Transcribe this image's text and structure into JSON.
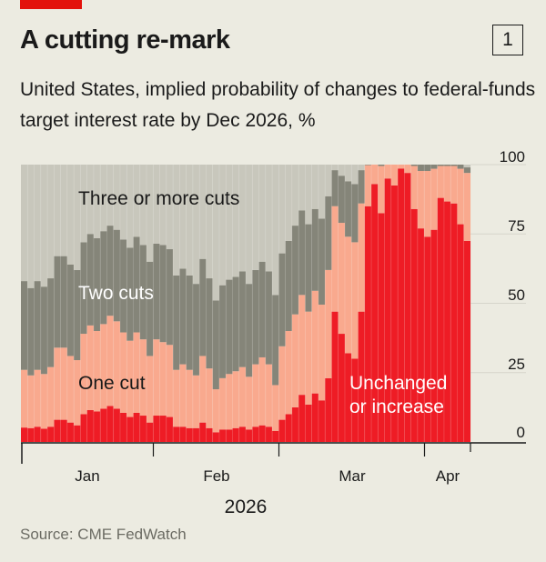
{
  "header": {
    "title": "A cutting re-mark",
    "chart_number": "1",
    "subtitle": "United States, implied probability of changes to federal-funds target interest rate by Dec 2026, %"
  },
  "source": "Source: CME FedWatch",
  "colors": {
    "background": "#ecebe1",
    "accent": "#e3120b",
    "unchanged": "#ee1c25",
    "one_cut": "#f9a98e",
    "two_cuts": "#858579",
    "three_cuts": "#c8c7bc"
  },
  "chart_data": {
    "type": "bar",
    "stacked": true,
    "title": "A cutting re-mark",
    "subtitle": "United States, implied probability of changes to federal-funds target interest rate by Dec 2026, %",
    "xlabel": "2026",
    "ylabel": "",
    "ylim": [
      0,
      100
    ],
    "yticks": [
      "0",
      "25",
      "50",
      "75",
      "100"
    ],
    "y_axis_side": "right",
    "grid": true,
    "x_month_labels": [
      "Jan",
      "Feb",
      "Mar",
      "Apr"
    ],
    "x_year_label": "2026",
    "series": [
      {
        "name": "Unchanged or increase",
        "color": "#ee1c25",
        "values": [
          5.2,
          5,
          5.5,
          4.8,
          5.5,
          8,
          8,
          7,
          6,
          10,
          11.5,
          11,
          12,
          13,
          12,
          10.5,
          9,
          10.5,
          9.5,
          7,
          9.5,
          9.5,
          9,
          5.5,
          5.5,
          5,
          5,
          7,
          5,
          3.5,
          4.5,
          4.5,
          5,
          5.5,
          4.5,
          5.5,
          6,
          5.5,
          4,
          8,
          10,
          12.5,
          17,
          13.5,
          17.5,
          15,
          23,
          47,
          39,
          32,
          30,
          47,
          85,
          93,
          82.5,
          95,
          92.5,
          98.6,
          97,
          84,
          77,
          74,
          76.5,
          88,
          86.7,
          86,
          78.5,
          72.5
        ]
      },
      {
        "name": "One cut",
        "color": "#f9a98e",
        "values": [
          20.8,
          19,
          20.5,
          19.7,
          21.5,
          26,
          26,
          24,
          23.5,
          29,
          30.5,
          29,
          30.5,
          32.5,
          31.5,
          29,
          27.5,
          29,
          27.5,
          24,
          27.5,
          26.5,
          26,
          20.5,
          22.5,
          21,
          19,
          24,
          21.5,
          15.5,
          18.5,
          20,
          20.5,
          21.5,
          19,
          22.5,
          24.5,
          22.5,
          16.5,
          26.5,
          30,
          33.5,
          36,
          33.5,
          37,
          34.5,
          39,
          38,
          40,
          42,
          42,
          39,
          14.8,
          7,
          17,
          5,
          7.5,
          1.4,
          3,
          15.5,
          20.7,
          23.7,
          22,
          11.5,
          12.8,
          13.5,
          20,
          24.5
        ]
      },
      {
        "name": "Two cuts",
        "color": "#858579",
        "values": [
          32,
          31.5,
          32,
          31.5,
          32,
          33,
          33,
          33,
          32.5,
          33,
          33,
          33.5,
          33.5,
          32.5,
          33,
          33.5,
          33.5,
          34.5,
          34,
          34,
          34.5,
          35,
          34.5,
          34,
          34.5,
          34,
          33,
          35,
          32.5,
          32,
          33.5,
          34,
          34,
          34.5,
          33.5,
          34,
          34.5,
          33.5,
          32.5,
          33.5,
          32.5,
          32,
          30.5,
          31.5,
          29.5,
          31,
          26.6,
          13,
          17,
          20,
          21,
          12,
          0.2,
          0,
          0.5,
          0,
          0,
          0,
          0,
          0.5,
          2.3,
          2.3,
          1.5,
          0.5,
          0.5,
          0.5,
          1.5,
          2
        ]
      },
      {
        "name": "Three or more cuts",
        "color": "#c8c7bc",
        "values": [
          42,
          44.5,
          42,
          44,
          41,
          33,
          33,
          36,
          38,
          28,
          25,
          26.5,
          24,
          22,
          23.5,
          27,
          30,
          26,
          29,
          35,
          28.5,
          29,
          30.5,
          40,
          37.5,
          40,
          43,
          34,
          41,
          49,
          43.5,
          41.5,
          40.5,
          38.5,
          43,
          38,
          35,
          38.5,
          47,
          32,
          27.5,
          22,
          16.5,
          21.5,
          16,
          19.5,
          11.4,
          2,
          4,
          6,
          7,
          2,
          0,
          0,
          0,
          0,
          0,
          0,
          0,
          0,
          0,
          0,
          0,
          0,
          0,
          0,
          0,
          1
        ]
      }
    ],
    "series_labels": [
      "Three or more cuts",
      "Two cuts",
      "One cut",
      "Unchanged",
      "or increase"
    ]
  }
}
